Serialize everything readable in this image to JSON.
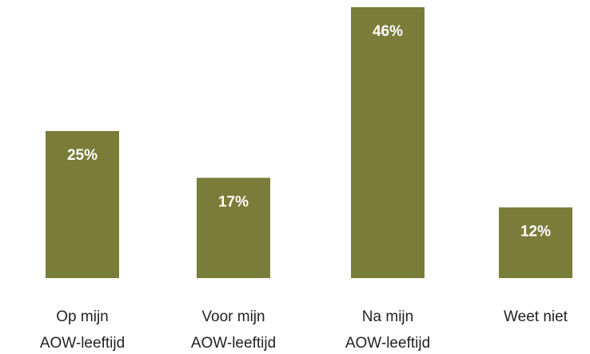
{
  "chart_data": {
    "type": "bar",
    "categories": [
      [
        "Op mijn",
        "AOW-leeftijd"
      ],
      [
        "Voor mijn",
        "AOW-leeftijd"
      ],
      [
        "Na mijn",
        "AOW-leeftijd"
      ],
      [
        "Weet niet"
      ]
    ],
    "values": [
      25,
      17,
      46,
      12
    ],
    "data_labels": [
      "25%",
      "17%",
      "46%",
      "12%"
    ],
    "unit": "%",
    "ylim": [
      0,
      46
    ],
    "grid": false,
    "legend": "none",
    "bar_color": "#7a7c3a",
    "label_color": "#ffffff",
    "text_color": "#222222"
  }
}
